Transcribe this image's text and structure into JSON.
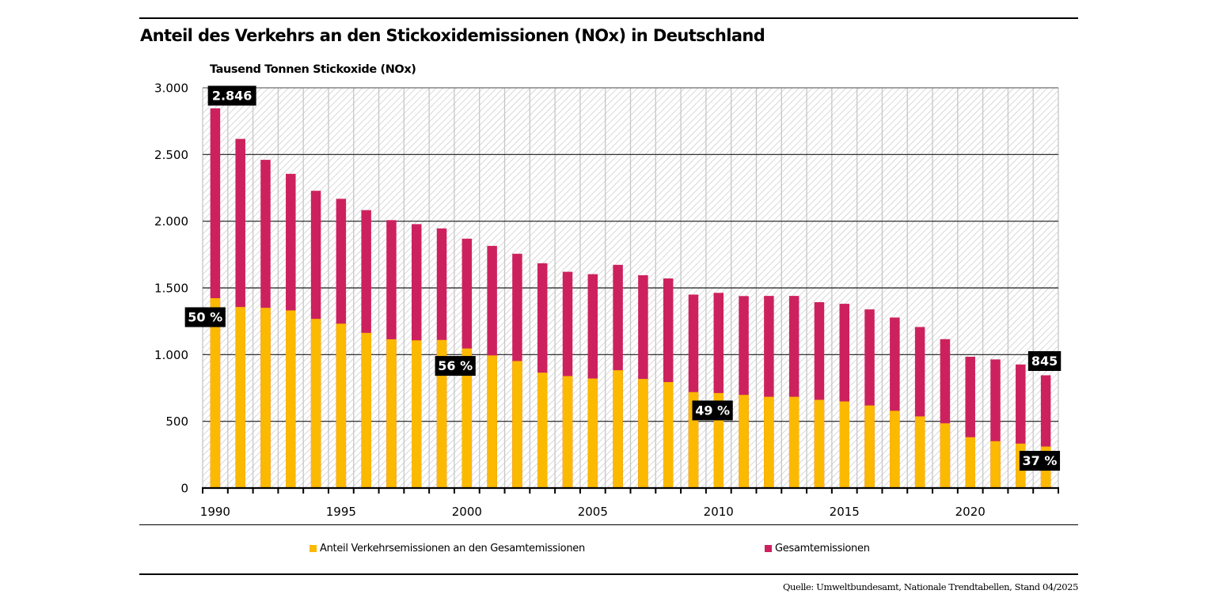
{
  "chart_data": {
    "type": "bar",
    "stacked": "overlay",
    "title": "Anteil des Verkehrs an den Stickoxidemissionen (NOx) in Deutschland",
    "ylabel": "Tausend Tonnen Stickoxide (NOx)",
    "xlabel": "",
    "ylim": [
      0,
      3000
    ],
    "yticks": [
      0,
      500,
      1000,
      1500,
      2000,
      2500,
      3000
    ],
    "ytick_labels": [
      "0",
      "500",
      "1.000",
      "1.500",
      "2.000",
      "2.500",
      "3.000"
    ],
    "categories": [
      1990,
      1991,
      1992,
      1993,
      1994,
      1995,
      1996,
      1997,
      1998,
      1999,
      2000,
      2001,
      2002,
      2003,
      2004,
      2005,
      2006,
      2007,
      2008,
      2009,
      2010,
      2011,
      2012,
      2013,
      2014,
      2015,
      2016,
      2017,
      2018,
      2019,
      2020,
      2021,
      2022,
      2023
    ],
    "xtick_labels": [
      {
        "category": 1990,
        "label": "1990"
      },
      {
        "category": 1995,
        "label": "1995"
      },
      {
        "category": 2000,
        "label": "2000"
      },
      {
        "category": 2005,
        "label": "2005"
      },
      {
        "category": 2010,
        "label": "2010"
      },
      {
        "category": 2015,
        "label": "2015"
      },
      {
        "category": 2020,
        "label": "2020"
      }
    ],
    "series": [
      {
        "name": "Gesamtemissionen",
        "color": "#cd215e",
        "values": [
          2846,
          2617,
          2460,
          2355,
          2228,
          2168,
          2083,
          2008,
          1978,
          1946,
          1869,
          1815,
          1756,
          1685,
          1621,
          1603,
          1673,
          1595,
          1571,
          1450,
          1463,
          1439,
          1440,
          1440,
          1393,
          1381,
          1339,
          1278,
          1207,
          1116,
          984,
          964,
          926,
          845
        ]
      },
      {
        "name": "Anteil Verkehrsemissionen an den Gesamtemissionen",
        "color": "#fbb900",
        "values": [
          1423,
          1357,
          1351,
          1331,
          1268,
          1232,
          1163,
          1115,
          1107,
          1110,
          1046,
          994,
          952,
          865,
          839,
          821,
          883,
          818,
          794,
          719,
          712,
          698,
          684,
          684,
          661,
          649,
          619,
          579,
          537,
          485,
          381,
          351,
          333,
          311
        ]
      }
    ],
    "annotations": [
      {
        "category": 1990,
        "value": 2846,
        "label": "2.846",
        "anchor": "total"
      },
      {
        "category": 1990,
        "value": 1423,
        "label": "50 %",
        "anchor": "share"
      },
      {
        "category": 2000,
        "value": 1046,
        "label": "56 %",
        "anchor": "share"
      },
      {
        "category": 2010,
        "value": 712,
        "label": "49 %",
        "anchor": "share"
      },
      {
        "category": 2023,
        "value": 845,
        "label": "845",
        "anchor": "total"
      },
      {
        "category": 2023,
        "value": 311,
        "label": "37 %",
        "anchor": "share"
      }
    ],
    "grid": true,
    "legend": {
      "placement": "bottom",
      "items": [
        {
          "label": "Anteil Verkehrsemissionen an den Gesamtemissionen",
          "color": "#fbb900"
        },
        {
          "label": "Gesamtemissionen",
          "color": "#cd215e"
        }
      ]
    },
    "source": "Quelle: Umweltbundesamt, Nationale Trendtabellen, Stand 04/2025"
  }
}
